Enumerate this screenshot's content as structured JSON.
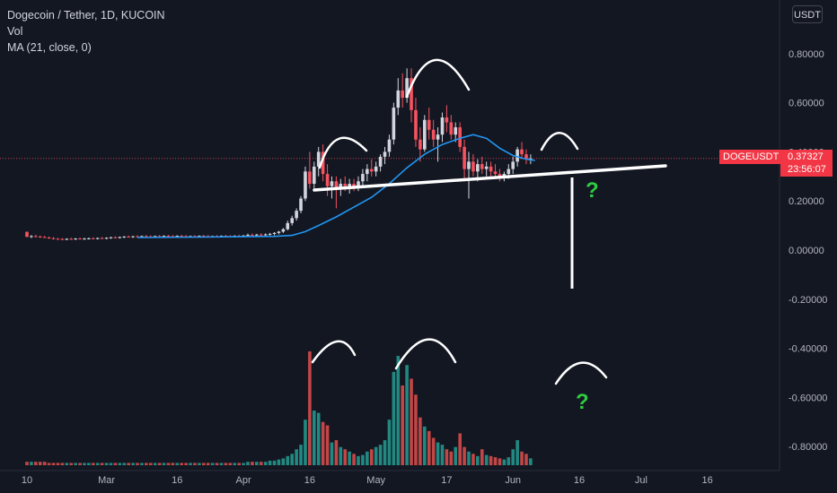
{
  "header": {
    "title": "Dogecoin / Tether, 1D, KUCOIN",
    "indicator_vol": "Vol",
    "indicator_ma": "MA (21, close, 0)"
  },
  "currency_button": "USDT",
  "price_tag": {
    "symbol": "DOGEUSDT",
    "price": "0.37327",
    "countdown": "23:56:07",
    "color": "#f23645"
  },
  "colors": {
    "background": "#131722",
    "up": "#d1d4dc",
    "down": "#f7525f",
    "ma": "#2196f3",
    "vol_up": "#26a69a",
    "vol_down": "#ef5350",
    "annotation": "#ffffff",
    "question": "#2ecc40"
  },
  "annotations": {
    "question_mark": "?"
  },
  "chart_data": {
    "type": "candlestick",
    "title": "Dogecoin / Tether, 1D, KUCOIN",
    "y_axis": {
      "ticks": [
        "0.80000",
        "0.60000",
        "0.40000",
        "0.20000",
        "0.00000",
        "-0.20000",
        "-0.40000",
        "-0.60000",
        "-0.80000"
      ],
      "tick_values": [
        0.8,
        0.6,
        0.4,
        0.2,
        0.0,
        -0.2,
        -0.4,
        -0.6,
        -0.8
      ],
      "range": [
        -0.86,
        0.86
      ]
    },
    "x_axis": {
      "ticks": [
        "10",
        "Mar",
        "16",
        "Apr",
        "16",
        "May",
        "17",
        "Jun",
        "16",
        "Jul",
        "16"
      ],
      "tick_day_index": [
        0,
        18,
        34,
        49,
        64,
        79,
        95,
        110,
        125,
        139,
        154
      ]
    },
    "last_price": 0.37327,
    "candles": [
      [
        0.074,
        0.076,
        0.052,
        0.054
      ],
      [
        0.054,
        0.061,
        0.049,
        0.057
      ],
      [
        0.057,
        0.062,
        0.052,
        0.055
      ],
      [
        0.055,
        0.059,
        0.05,
        0.053
      ],
      [
        0.053,
        0.058,
        0.049,
        0.051
      ],
      [
        0.051,
        0.055,
        0.046,
        0.048
      ],
      [
        0.048,
        0.053,
        0.043,
        0.046
      ],
      [
        0.046,
        0.05,
        0.042,
        0.045
      ],
      [
        0.045,
        0.049,
        0.041,
        0.044
      ],
      [
        0.044,
        0.048,
        0.04,
        0.046
      ],
      [
        0.046,
        0.05,
        0.042,
        0.045
      ],
      [
        0.045,
        0.049,
        0.041,
        0.047
      ],
      [
        0.047,
        0.051,
        0.043,
        0.046
      ],
      [
        0.046,
        0.05,
        0.042,
        0.047
      ],
      [
        0.047,
        0.051,
        0.043,
        0.048
      ],
      [
        0.048,
        0.052,
        0.044,
        0.047
      ],
      [
        0.047,
        0.051,
        0.043,
        0.049
      ],
      [
        0.049,
        0.053,
        0.045,
        0.048
      ],
      [
        0.048,
        0.052,
        0.044,
        0.05
      ],
      [
        0.05,
        0.054,
        0.046,
        0.052
      ],
      [
        0.052,
        0.056,
        0.048,
        0.051
      ],
      [
        0.051,
        0.055,
        0.047,
        0.053
      ],
      [
        0.053,
        0.057,
        0.049,
        0.055
      ],
      [
        0.055,
        0.059,
        0.051,
        0.054
      ],
      [
        0.054,
        0.058,
        0.05,
        0.056
      ],
      [
        0.056,
        0.06,
        0.052,
        0.055
      ],
      [
        0.055,
        0.059,
        0.051,
        0.057
      ],
      [
        0.057,
        0.061,
        0.053,
        0.056
      ],
      [
        0.056,
        0.06,
        0.052,
        0.055
      ],
      [
        0.055,
        0.059,
        0.051,
        0.057
      ],
      [
        0.057,
        0.061,
        0.053,
        0.056
      ],
      [
        0.056,
        0.06,
        0.052,
        0.058
      ],
      [
        0.058,
        0.062,
        0.054,
        0.057
      ],
      [
        0.057,
        0.061,
        0.053,
        0.056
      ],
      [
        0.056,
        0.06,
        0.052,
        0.058
      ],
      [
        0.058,
        0.062,
        0.054,
        0.057
      ],
      [
        0.057,
        0.061,
        0.053,
        0.055
      ],
      [
        0.055,
        0.059,
        0.051,
        0.057
      ],
      [
        0.057,
        0.061,
        0.053,
        0.056
      ],
      [
        0.056,
        0.06,
        0.052,
        0.058
      ],
      [
        0.058,
        0.062,
        0.054,
        0.057
      ],
      [
        0.057,
        0.061,
        0.053,
        0.055
      ],
      [
        0.055,
        0.059,
        0.051,
        0.057
      ],
      [
        0.057,
        0.061,
        0.053,
        0.056
      ],
      [
        0.056,
        0.06,
        0.052,
        0.058
      ],
      [
        0.058,
        0.062,
        0.054,
        0.057
      ],
      [
        0.057,
        0.061,
        0.053,
        0.056
      ],
      [
        0.056,
        0.061,
        0.052,
        0.058
      ],
      [
        0.058,
        0.063,
        0.054,
        0.057
      ],
      [
        0.057,
        0.062,
        0.053,
        0.059
      ],
      [
        0.059,
        0.067,
        0.055,
        0.062
      ],
      [
        0.062,
        0.068,
        0.057,
        0.06
      ],
      [
        0.06,
        0.066,
        0.056,
        0.063
      ],
      [
        0.063,
        0.069,
        0.058,
        0.061
      ],
      [
        0.061,
        0.068,
        0.057,
        0.064
      ],
      [
        0.064,
        0.07,
        0.059,
        0.066
      ],
      [
        0.066,
        0.073,
        0.06,
        0.07
      ],
      [
        0.07,
        0.078,
        0.064,
        0.075
      ],
      [
        0.075,
        0.09,
        0.07,
        0.085
      ],
      [
        0.085,
        0.12,
        0.08,
        0.11
      ],
      [
        0.11,
        0.14,
        0.1,
        0.13
      ],
      [
        0.13,
        0.17,
        0.12,
        0.16
      ],
      [
        0.16,
        0.22,
        0.15,
        0.21
      ],
      [
        0.21,
        0.34,
        0.2,
        0.32
      ],
      [
        0.32,
        0.4,
        0.25,
        0.27
      ],
      [
        0.27,
        0.36,
        0.24,
        0.34
      ],
      [
        0.34,
        0.42,
        0.3,
        0.4
      ],
      [
        0.4,
        0.43,
        0.28,
        0.31
      ],
      [
        0.31,
        0.35,
        0.22,
        0.26
      ],
      [
        0.26,
        0.3,
        0.21,
        0.28
      ],
      [
        0.28,
        0.3,
        0.17,
        0.25
      ],
      [
        0.25,
        0.29,
        0.22,
        0.27
      ],
      [
        0.27,
        0.3,
        0.24,
        0.26
      ],
      [
        0.26,
        0.29,
        0.23,
        0.27
      ],
      [
        0.27,
        0.29,
        0.24,
        0.26
      ],
      [
        0.26,
        0.3,
        0.24,
        0.28
      ],
      [
        0.28,
        0.33,
        0.26,
        0.31
      ],
      [
        0.31,
        0.35,
        0.28,
        0.33
      ],
      [
        0.33,
        0.37,
        0.3,
        0.32
      ],
      [
        0.32,
        0.36,
        0.3,
        0.34
      ],
      [
        0.34,
        0.39,
        0.32,
        0.38
      ],
      [
        0.38,
        0.42,
        0.35,
        0.4
      ],
      [
        0.4,
        0.47,
        0.38,
        0.45
      ],
      [
        0.45,
        0.6,
        0.43,
        0.58
      ],
      [
        0.58,
        0.7,
        0.55,
        0.65
      ],
      [
        0.65,
        0.72,
        0.58,
        0.62
      ],
      [
        0.62,
        0.74,
        0.6,
        0.7
      ],
      [
        0.7,
        0.74,
        0.52,
        0.57
      ],
      [
        0.57,
        0.62,
        0.42,
        0.45
      ],
      [
        0.45,
        0.5,
        0.36,
        0.41
      ],
      [
        0.41,
        0.55,
        0.4,
        0.53
      ],
      [
        0.53,
        0.58,
        0.45,
        0.49
      ],
      [
        0.49,
        0.53,
        0.42,
        0.45
      ],
      [
        0.45,
        0.5,
        0.36,
        0.47
      ],
      [
        0.47,
        0.56,
        0.44,
        0.54
      ],
      [
        0.54,
        0.59,
        0.48,
        0.52
      ],
      [
        0.52,
        0.55,
        0.45,
        0.47
      ],
      [
        0.47,
        0.52,
        0.44,
        0.5
      ],
      [
        0.5,
        0.52,
        0.4,
        0.42
      ],
      [
        0.42,
        0.45,
        0.28,
        0.33
      ],
      [
        0.33,
        0.4,
        0.21,
        0.36
      ],
      [
        0.36,
        0.39,
        0.3,
        0.32
      ],
      [
        0.32,
        0.37,
        0.28,
        0.35
      ],
      [
        0.35,
        0.38,
        0.31,
        0.33
      ],
      [
        0.33,
        0.36,
        0.3,
        0.34
      ],
      [
        0.34,
        0.36,
        0.3,
        0.32
      ],
      [
        0.32,
        0.35,
        0.29,
        0.31
      ],
      [
        0.31,
        0.33,
        0.28,
        0.3
      ],
      [
        0.3,
        0.32,
        0.28,
        0.31
      ],
      [
        0.31,
        0.35,
        0.29,
        0.33
      ],
      [
        0.33,
        0.38,
        0.31,
        0.36
      ],
      [
        0.36,
        0.42,
        0.34,
        0.41
      ],
      [
        0.41,
        0.44,
        0.37,
        0.39
      ],
      [
        0.39,
        0.41,
        0.35,
        0.37
      ],
      [
        0.37,
        0.39,
        0.35,
        0.37327
      ]
    ],
    "ma": {
      "name": "MA (21, close, 0)",
      "values": [
        [
          25,
          0.051
        ],
        [
          40,
          0.053
        ],
        [
          56,
          0.056
        ],
        [
          60,
          0.06
        ],
        [
          63,
          0.075
        ],
        [
          66,
          0.1
        ],
        [
          70,
          0.135
        ],
        [
          74,
          0.175
        ],
        [
          78,
          0.215
        ],
        [
          82,
          0.27
        ],
        [
          86,
          0.335
        ],
        [
          90,
          0.39
        ],
        [
          94,
          0.43
        ],
        [
          98,
          0.455
        ],
        [
          101,
          0.47
        ],
        [
          104,
          0.455
        ],
        [
          107,
          0.415
        ],
        [
          110,
          0.385
        ],
        [
          113,
          0.37
        ],
        [
          115,
          0.365
        ]
      ]
    },
    "volume": {
      "name": "Vol",
      "values": [
        3,
        3,
        3,
        3,
        3,
        2,
        2,
        2,
        2,
        2,
        2,
        2,
        2,
        2,
        2,
        2,
        2,
        2,
        2,
        2,
        2,
        2,
        2,
        2,
        2,
        2,
        2,
        2,
        2,
        2,
        2,
        2,
        2,
        2,
        2,
        2,
        2,
        2,
        2,
        2,
        2,
        2,
        2,
        2,
        2,
        2,
        2,
        2,
        2,
        2,
        3,
        3,
        3,
        3,
        3,
        4,
        4,
        5,
        6,
        8,
        10,
        14,
        18,
        40,
        100,
        48,
        46,
        38,
        35,
        20,
        22,
        16,
        14,
        12,
        10,
        8,
        9,
        12,
        14,
        16,
        18,
        22,
        40,
        82,
        96,
        70,
        88,
        76,
        62,
        42,
        34,
        30,
        24,
        20,
        18,
        14,
        12,
        16,
        28,
        16,
        12,
        10,
        8,
        14,
        9,
        8,
        7,
        6,
        5,
        7,
        14,
        22,
        12,
        10,
        6
      ]
    }
  }
}
